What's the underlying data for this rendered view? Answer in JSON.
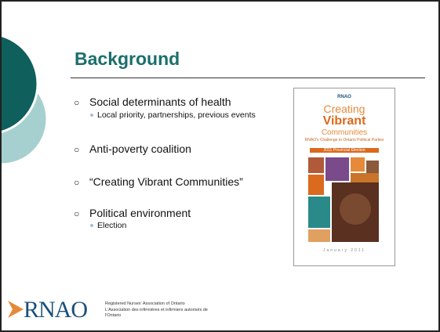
{
  "title": "Background",
  "bullets": [
    {
      "text": "Social determinants of health",
      "sub": [
        "Local priority, partnerships, previous events"
      ]
    },
    {
      "text": "Anti-poverty coalition",
      "sub": []
    },
    {
      "text": "“Creating Vibrant Communities”",
      "sub": []
    },
    {
      "text": "Political environment",
      "sub": [
        "Election"
      ]
    }
  ],
  "cover": {
    "brand": "RNAO",
    "line1": "Creating",
    "line2": "Vibrant",
    "line3": "Communities",
    "subtitle": "RNAO's Challenge to Ontario Political Parties",
    "edition": "2011 Provincial Election",
    "date": "January 2011"
  },
  "logo": {
    "mark": "RNAO",
    "english": "Registered Nurses' Association of Ontario",
    "french": "L'Association des infirmières et infirmiers autorisés de l'Ontario"
  }
}
